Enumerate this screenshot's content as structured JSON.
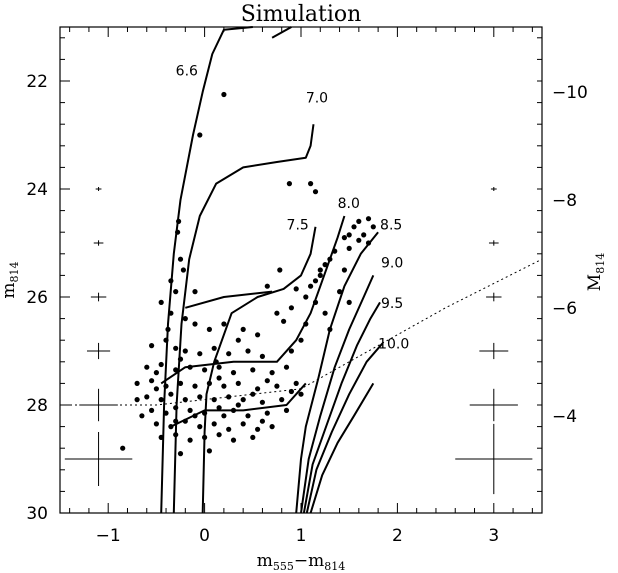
{
  "chart_data": {
    "type": "scatter",
    "title": "Simulation",
    "xlabel": {
      "main": "m",
      "sub1": "555",
      "mid": "−m",
      "sub2": "814"
    },
    "ylabel": {
      "main": "m",
      "sub": "814"
    },
    "ylabel_right": {
      "main": "M",
      "sub": "814"
    },
    "xlim": [
      -1.5,
      3.5
    ],
    "ylim": [
      30,
      21
    ],
    "distance_modulus": 32.2,
    "x_ticks": [
      -1,
      0,
      1,
      2,
      3
    ],
    "x_tick_labels": [
      "−1",
      "0",
      "1",
      "2",
      "3"
    ],
    "y_ticks": [
      22,
      24,
      26,
      28,
      30
    ],
    "y_tick_labels": [
      "22",
      "24",
      "26",
      "28",
      "30"
    ],
    "y_right_ticks": [
      -10,
      -8,
      -6,
      -4
    ],
    "y_right_tick_labels": [
      "−10",
      "−8",
      "−6",
      "−4"
    ],
    "isochrone_labels": [
      {
        "text": "6.6",
        "x": -0.3,
        "y": 21.9
      },
      {
        "text": "7.0",
        "x": 1.05,
        "y": 22.4
      },
      {
        "text": "7.5",
        "x": 0.85,
        "y": 24.75
      },
      {
        "text": "8.0",
        "x": 1.38,
        "y": 24.35
      },
      {
        "text": "8.5",
        "x": 1.82,
        "y": 24.75
      },
      {
        "text": "9.0",
        "x": 1.83,
        "y": 25.45
      },
      {
        "text": "9.5",
        "x": 1.83,
        "y": 26.2
      },
      {
        "text": "10.0",
        "x": 1.8,
        "y": 26.95
      }
    ],
    "isochrones": [
      {
        "name": "6.6",
        "points": [
          [
            -0.45,
            30
          ],
          [
            -0.42,
            28
          ],
          [
            -0.38,
            26.5
          ],
          [
            -0.32,
            25.2
          ],
          [
            -0.25,
            24.2
          ],
          [
            -0.12,
            23
          ],
          [
            -0.02,
            22.2
          ],
          [
            0.08,
            21.5
          ],
          [
            0.2,
            21.05
          ],
          [
            0.5,
            21.0
          ]
        ]
      },
      {
        "name": "6.6b",
        "points": [
          [
            0.7,
            21.2
          ],
          [
            0.9,
            21.0
          ]
        ]
      },
      {
        "name": "7.0",
        "points": [
          [
            -0.32,
            30
          ],
          [
            -0.29,
            28
          ],
          [
            -0.24,
            26.5
          ],
          [
            -0.16,
            25.3
          ],
          [
            -0.05,
            24.5
          ],
          [
            0.12,
            23.9
          ],
          [
            0.4,
            23.6
          ],
          [
            0.75,
            23.5
          ],
          [
            1.05,
            23.42
          ],
          [
            1.1,
            23.2
          ],
          [
            1.13,
            22.8
          ]
        ]
      },
      {
        "name": "7.0b",
        "points": [
          [
            -0.02,
            30
          ],
          [
            0.0,
            28.5
          ],
          [
            0.02,
            27.8
          ],
          [
            0.1,
            27.2
          ],
          [
            0.28,
            26.3
          ],
          [
            0.55,
            26.0
          ],
          [
            0.82,
            25.85
          ],
          [
            1.0,
            25.6
          ],
          [
            1.1,
            25.2
          ],
          [
            1.15,
            24.7
          ]
        ]
      },
      {
        "name": "7.5",
        "points": [
          [
            -0.45,
            27.6
          ],
          [
            -0.2,
            27.3
          ],
          [
            0.3,
            27.2
          ],
          [
            0.75,
            27.2
          ],
          [
            0.95,
            26.8
          ],
          [
            1.1,
            26.3
          ],
          [
            1.2,
            25.8
          ],
          [
            1.3,
            25.3
          ],
          [
            1.38,
            24.9
          ],
          [
            1.45,
            24.5
          ]
        ]
      },
      {
        "name": "8.0",
        "points": [
          [
            0.95,
            30
          ],
          [
            1.0,
            29.0
          ],
          [
            1.05,
            28.4
          ],
          [
            1.18,
            27.5
          ],
          [
            1.3,
            26.6
          ],
          [
            1.45,
            25.8
          ],
          [
            1.62,
            25.2
          ],
          [
            1.8,
            24.8
          ]
        ]
      },
      {
        "name": "8.5",
        "points": [
          [
            1.0,
            30
          ],
          [
            1.08,
            29.0
          ],
          [
            1.2,
            28.2
          ],
          [
            1.35,
            27.3
          ],
          [
            1.5,
            26.6
          ],
          [
            1.65,
            26.0
          ],
          [
            1.75,
            25.6
          ]
        ]
      },
      {
        "name": "9.0",
        "points": [
          [
            1.03,
            30
          ],
          [
            1.12,
            29.1
          ],
          [
            1.26,
            28.4
          ],
          [
            1.42,
            27.6
          ],
          [
            1.58,
            26.9
          ],
          [
            1.72,
            26.4
          ],
          [
            1.82,
            26.1
          ]
        ]
      },
      {
        "name": "9.5",
        "points": [
          [
            1.06,
            30
          ],
          [
            1.16,
            29.2
          ],
          [
            1.32,
            28.5
          ],
          [
            1.5,
            27.8
          ],
          [
            1.68,
            27.2
          ],
          [
            1.85,
            26.85
          ]
        ]
      },
      {
        "name": "10.0",
        "points": [
          [
            1.1,
            30
          ],
          [
            1.22,
            29.3
          ],
          [
            1.38,
            28.7
          ],
          [
            1.55,
            28.2
          ],
          [
            1.75,
            27.6
          ]
        ]
      },
      {
        "name": "hb1",
        "points": [
          [
            -0.35,
            28.4
          ],
          [
            0.0,
            28.1
          ],
          [
            0.4,
            28.1
          ],
          [
            0.85,
            28.0
          ],
          [
            1.05,
            27.6
          ]
        ]
      },
      {
        "name": "hb2",
        "points": [
          [
            -0.2,
            26.2
          ],
          [
            0.2,
            26.0
          ],
          [
            0.7,
            25.9
          ]
        ]
      }
    ],
    "completeness_line": [
      [
        -1.5,
        28.0
      ],
      [
        -0.5,
        28.0
      ],
      [
        1.0,
        27.7
      ],
      [
        2.5,
        26.2
      ],
      [
        3.5,
        25.3
      ]
    ],
    "error_bars": [
      {
        "x": -1.1,
        "y": 24,
        "dx": 0.03,
        "dy": 0.03
      },
      {
        "x": -1.1,
        "y": 25,
        "dx": 0.05,
        "dy": 0.05
      },
      {
        "x": -1.1,
        "y": 26,
        "dx": 0.08,
        "dy": 0.08
      },
      {
        "x": -1.1,
        "y": 27,
        "dx": 0.12,
        "dy": 0.15
      },
      {
        "x": -1.1,
        "y": 28,
        "dx": 0.2,
        "dy": 0.3
      },
      {
        "x": -1.1,
        "y": 29,
        "dx": 0.35,
        "dy": 0.5
      },
      {
        "x": 3.0,
        "y": 24,
        "dx": 0.03,
        "dy": 0.03
      },
      {
        "x": 3.0,
        "y": 25,
        "dx": 0.05,
        "dy": 0.05
      },
      {
        "x": 3.0,
        "y": 26,
        "dx": 0.08,
        "dy": 0.08
      },
      {
        "x": 3.0,
        "y": 27,
        "dx": 0.15,
        "dy": 0.15
      },
      {
        "x": 3.0,
        "y": 28,
        "dx": 0.25,
        "dy": 0.3
      },
      {
        "x": 3.0,
        "y": 29,
        "dx": 0.4,
        "dy": 0.65
      }
    ],
    "points": [
      [
        0.2,
        22.25
      ],
      [
        -0.05,
        23.0
      ],
      [
        0.88,
        23.9
      ],
      [
        1.1,
        23.9
      ],
      [
        1.15,
        24.05
      ],
      [
        -0.27,
        24.6
      ],
      [
        -0.28,
        24.8
      ],
      [
        1.7,
        24.55
      ],
      [
        1.6,
        24.6
      ],
      [
        1.55,
        24.7
      ],
      [
        1.75,
        24.7
      ],
      [
        1.5,
        24.85
      ],
      [
        1.65,
        24.85
      ],
      [
        1.45,
        24.9
      ],
      [
        1.6,
        24.95
      ],
      [
        1.7,
        25.0
      ],
      [
        1.5,
        25.1
      ],
      [
        1.35,
        25.15
      ],
      [
        1.3,
        25.3
      ],
      [
        1.25,
        25.4
      ],
      [
        1.2,
        25.5
      ],
      [
        1.2,
        25.6
      ],
      [
        1.15,
        25.7
      ],
      [
        1.1,
        25.8
      ],
      [
        -0.25,
        25.3
      ],
      [
        -0.22,
        25.5
      ],
      [
        0.78,
        25.5
      ],
      [
        -0.35,
        25.7
      ],
      [
        -0.3,
        25.9
      ],
      [
        -0.1,
        25.9
      ],
      [
        0.65,
        25.8
      ],
      [
        0.95,
        25.85
      ],
      [
        1.05,
        26.0
      ],
      [
        1.15,
        26.1
      ],
      [
        0.75,
        26.3
      ],
      [
        1.5,
        26.1
      ],
      [
        1.25,
        26.3
      ],
      [
        1.05,
        26.5
      ],
      [
        1.0,
        26.8
      ],
      [
        0.9,
        27.0
      ],
      [
        -0.45,
        26.1
      ],
      [
        -0.35,
        26.3
      ],
      [
        -0.2,
        26.4
      ],
      [
        -0.1,
        26.5
      ],
      [
        0.05,
        26.6
      ],
      [
        0.2,
        26.5
      ],
      [
        0.4,
        26.6
      ],
      [
        0.55,
        26.7
      ],
      [
        -0.55,
        26.9
      ],
      [
        -0.4,
        26.8
      ],
      [
        -0.3,
        26.95
      ],
      [
        -0.2,
        27.0
      ],
      [
        -0.05,
        27.05
      ],
      [
        0.1,
        26.95
      ],
      [
        0.25,
        27.05
      ],
      [
        0.45,
        27.0
      ],
      [
        0.6,
        27.1
      ],
      [
        -0.6,
        27.3
      ],
      [
        -0.45,
        27.25
      ],
      [
        -0.3,
        27.35
      ],
      [
        -0.15,
        27.3
      ],
      [
        0.0,
        27.35
      ],
      [
        0.15,
        27.3
      ],
      [
        0.3,
        27.4
      ],
      [
        0.5,
        27.35
      ],
      [
        0.7,
        27.4
      ],
      [
        0.85,
        27.3
      ],
      [
        -0.7,
        27.6
      ],
      [
        -0.55,
        27.55
      ],
      [
        -0.4,
        27.65
      ],
      [
        -0.25,
        27.6
      ],
      [
        -0.1,
        27.65
      ],
      [
        0.05,
        27.6
      ],
      [
        0.2,
        27.65
      ],
      [
        0.35,
        27.6
      ],
      [
        0.55,
        27.7
      ],
      [
        0.75,
        27.65
      ],
      [
        0.95,
        27.6
      ],
      [
        -0.6,
        27.85
      ],
      [
        -0.45,
        27.9
      ],
      [
        -0.35,
        27.8
      ],
      [
        -0.2,
        27.9
      ],
      [
        -0.05,
        27.85
      ],
      [
        0.1,
        27.9
      ],
      [
        0.25,
        27.85
      ],
      [
        0.4,
        27.9
      ],
      [
        0.6,
        27.95
      ],
      [
        0.8,
        27.9
      ],
      [
        1.0,
        27.8
      ],
      [
        -0.55,
        28.1
      ],
      [
        -0.4,
        28.15
      ],
      [
        -0.3,
        28.05
      ],
      [
        -0.15,
        28.1
      ],
      [
        0.0,
        28.15
      ],
      [
        0.15,
        28.05
      ],
      [
        0.3,
        28.1
      ],
      [
        0.45,
        28.2
      ],
      [
        0.65,
        28.15
      ],
      [
        0.85,
        28.1
      ],
      [
        -0.5,
        28.35
      ],
      [
        -0.35,
        28.4
      ],
      [
        -0.2,
        28.3
      ],
      [
        -0.05,
        28.4
      ],
      [
        0.1,
        28.35
      ],
      [
        0.25,
        28.45
      ],
      [
        0.4,
        28.35
      ],
      [
        0.55,
        28.45
      ],
      [
        0.7,
        28.4
      ],
      [
        -0.45,
        28.6
      ],
      [
        -0.3,
        28.55
      ],
      [
        -0.15,
        28.65
      ],
      [
        0.0,
        28.6
      ],
      [
        0.15,
        28.55
      ],
      [
        0.3,
        28.65
      ],
      [
        0.5,
        28.6
      ],
      [
        -0.85,
        28.8
      ],
      [
        -0.25,
        28.9
      ],
      [
        0.05,
        28.85
      ],
      [
        -0.7,
        27.9
      ],
      [
        -0.65,
        28.2
      ],
      [
        -0.5,
        27.4
      ],
      [
        -0.25,
        27.15
      ],
      [
        0.12,
        27.2
      ],
      [
        0.35,
        26.8
      ],
      [
        -0.38,
        26.6
      ],
      [
        0.9,
        26.2
      ],
      [
        1.3,
        26.6
      ],
      [
        1.4,
        25.9
      ],
      [
        1.45,
        25.5
      ],
      [
        0.82,
        26.45
      ],
      [
        -0.3,
        28.3
      ],
      [
        0.2,
        28.2
      ],
      [
        0.6,
        28.3
      ],
      [
        -0.1,
        28.2
      ],
      [
        0.35,
        28.0
      ],
      [
        0.5,
        27.8
      ],
      [
        -0.5,
        27.7
      ],
      [
        0.15,
        27.5
      ],
      [
        0.65,
        27.55
      ],
      [
        0.9,
        27.75
      ]
    ]
  }
}
